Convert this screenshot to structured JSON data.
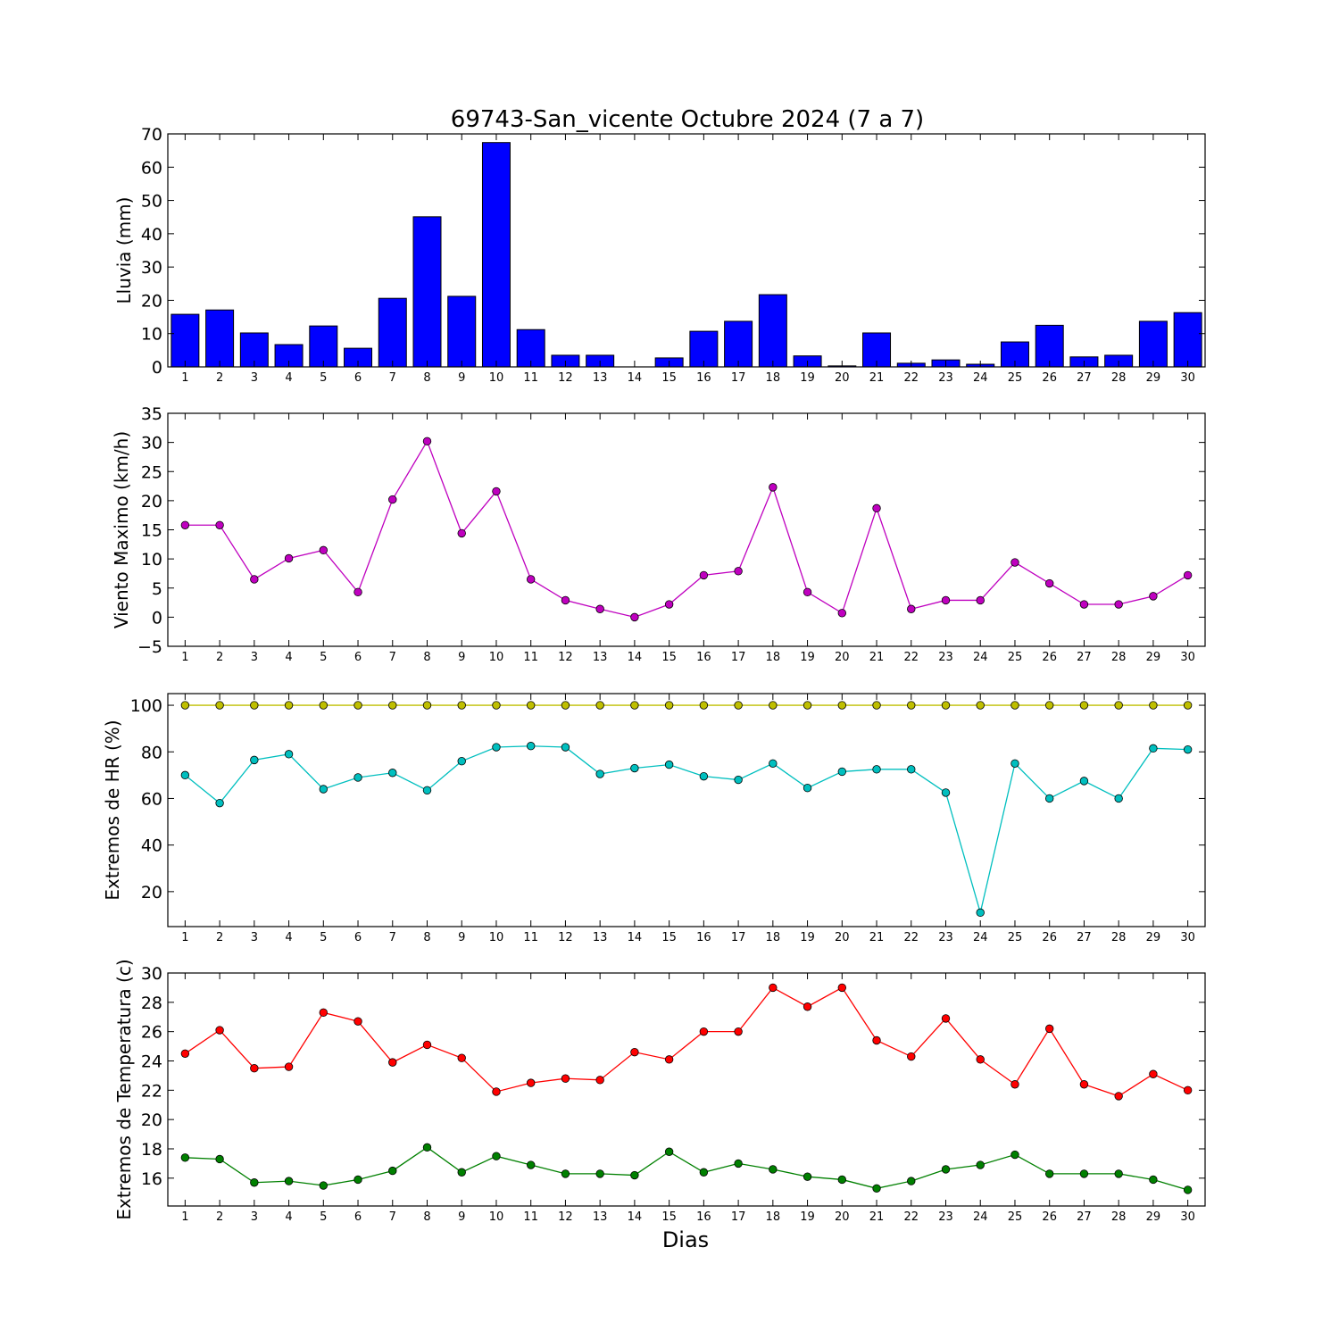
{
  "chart_data": [
    {
      "type": "bar",
      "title": "69743-San_vicente Octubre 2024  (7 a 7)",
      "ylabel": "Lluvia (mm)",
      "xlabel": "",
      "ylim": [
        0,
        70
      ],
      "yticks": [
        0,
        10,
        20,
        30,
        40,
        50,
        60,
        70
      ],
      "categories": [
        "1",
        "2",
        "3",
        "4",
        "5",
        "6",
        "7",
        "8",
        "9",
        "10",
        "11",
        "12",
        "13",
        "14",
        "15",
        "16",
        "17",
        "18",
        "19",
        "20",
        "21",
        "22",
        "23",
        "24",
        "25",
        "26",
        "27",
        "28",
        "29",
        "30"
      ],
      "series": [
        {
          "color": "#0000ff",
          "values": [
            15.8,
            17.1,
            10.2,
            6.7,
            12.3,
            5.6,
            20.6,
            45.1,
            21.2,
            67.4,
            11.2,
            3.5,
            3.5,
            0.0,
            2.7,
            10.7,
            13.7,
            21.7,
            3.3,
            0.3,
            10.2,
            1.1,
            2.1,
            0.8,
            7.5,
            12.5,
            3.0,
            3.5,
            13.7,
            16.3
          ]
        }
      ],
      "grid": false
    },
    {
      "type": "line",
      "ylabel": "Viento Maximo (km/h)",
      "xlabel": "",
      "ylim": [
        -5,
        35
      ],
      "yticks": [
        -5,
        0,
        5,
        10,
        15,
        20,
        25,
        30,
        35
      ],
      "categories": [
        "1",
        "2",
        "3",
        "4",
        "5",
        "6",
        "7",
        "8",
        "9",
        "10",
        "11",
        "12",
        "13",
        "14",
        "15",
        "16",
        "17",
        "18",
        "19",
        "20",
        "21",
        "22",
        "23",
        "24",
        "25",
        "26",
        "27",
        "28",
        "29",
        "30"
      ],
      "series": [
        {
          "color": "#bf00bf",
          "values": [
            15.8,
            15.8,
            6.5,
            10.1,
            11.5,
            4.3,
            20.2,
            30.2,
            14.4,
            21.6,
            6.5,
            2.9,
            1.4,
            0.0,
            2.2,
            7.2,
            7.9,
            22.3,
            4.3,
            0.7,
            18.7,
            1.4,
            2.9,
            2.9,
            9.4,
            5.8,
            2.2,
            2.2,
            3.6,
            7.2
          ]
        }
      ],
      "grid": false
    },
    {
      "type": "line",
      "ylabel": "Extremos de HR (%)",
      "xlabel": "",
      "ylim": [
        5,
        105
      ],
      "yticks": [
        20,
        40,
        60,
        80,
        100
      ],
      "categories": [
        "1",
        "2",
        "3",
        "4",
        "5",
        "6",
        "7",
        "8",
        "9",
        "10",
        "11",
        "12",
        "13",
        "14",
        "15",
        "16",
        "17",
        "18",
        "19",
        "20",
        "21",
        "22",
        "23",
        "24",
        "25",
        "26",
        "27",
        "28",
        "29",
        "30"
      ],
      "series": [
        {
          "color": "#bfbf00",
          "values": [
            100,
            100,
            100,
            100,
            100,
            100,
            100,
            100,
            100,
            100,
            100,
            100,
            100,
            100,
            100,
            100,
            100,
            100,
            100,
            100,
            100,
            100,
            100,
            100,
            100,
            100,
            100,
            100,
            100,
            100
          ]
        },
        {
          "color": "#00bfbf",
          "values": [
            70,
            58,
            76.5,
            79,
            64,
            69,
            71,
            63.5,
            76,
            82,
            82.5,
            82,
            70.5,
            73,
            74.5,
            69.5,
            68,
            75,
            64.5,
            71.5,
            72.5,
            72.5,
            62.5,
            11,
            75,
            60,
            67.5,
            60,
            81.5,
            81
          ]
        }
      ],
      "grid": false
    },
    {
      "type": "line",
      "ylabel": "Extremos de Temperatura (c)",
      "xlabel": "Dias",
      "ylim": [
        14.1,
        30
      ],
      "yticks": [
        16,
        18,
        20,
        22,
        24,
        26,
        28,
        30
      ],
      "categories": [
        "1",
        "2",
        "3",
        "4",
        "5",
        "6",
        "7",
        "8",
        "9",
        "10",
        "11",
        "12",
        "13",
        "14",
        "15",
        "16",
        "17",
        "18",
        "19",
        "20",
        "21",
        "22",
        "23",
        "24",
        "25",
        "26",
        "27",
        "28",
        "29",
        "30"
      ],
      "series": [
        {
          "color": "#ff0000",
          "values": [
            24.5,
            26.1,
            23.5,
            23.6,
            27.3,
            26.7,
            23.9,
            25.1,
            24.2,
            21.9,
            22.5,
            22.8,
            22.7,
            24.6,
            24.1,
            26.0,
            26.0,
            29.0,
            27.7,
            29.0,
            25.4,
            24.3,
            26.9,
            24.1,
            22.4,
            26.2,
            22.4,
            21.6,
            23.1,
            22.0
          ]
        },
        {
          "color": "#008000",
          "values": [
            17.4,
            17.3,
            15.7,
            15.8,
            15.5,
            15.9,
            16.5,
            18.1,
            16.4,
            17.5,
            16.9,
            16.3,
            16.3,
            16.2,
            17.8,
            16.4,
            17.0,
            16.6,
            16.1,
            15.9,
            15.3,
            15.8,
            16.6,
            16.9,
            17.6,
            16.3,
            16.3,
            16.3,
            15.9,
            15.2
          ]
        }
      ],
      "grid": false
    }
  ]
}
